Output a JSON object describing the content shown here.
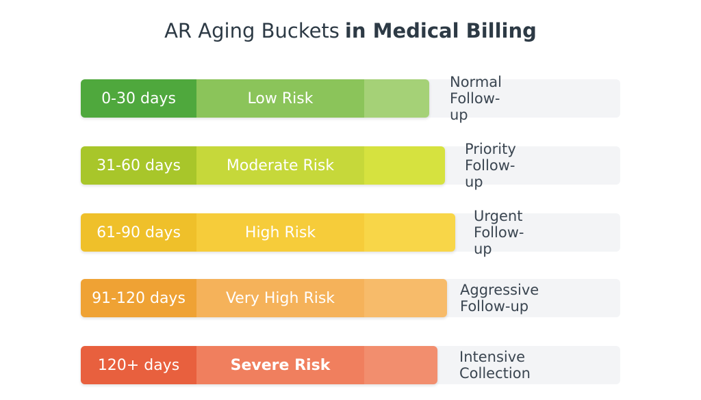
{
  "header": {
    "title": "AR Aging Buckets",
    "title_bold": "in Medical Billing"
  },
  "rows": [
    {
      "range": "0-30 days",
      "risk": "Low Risk",
      "action": "Normal Follow-up"
    },
    {
      "range": "31-60 days",
      "risk": "Moderate Risk",
      "action": "Priority Follow-up"
    },
    {
      "range": "61-90 days",
      "risk": "High Risk",
      "action": "Urgent Follow-up"
    },
    {
      "range": "91-120 days",
      "risk": "Very High Risk",
      "action": "Aggressive Follow-up"
    },
    {
      "range": "120+ days",
      "risk": "Severe Risk",
      "action": "Intensive Collection"
    }
  ]
}
